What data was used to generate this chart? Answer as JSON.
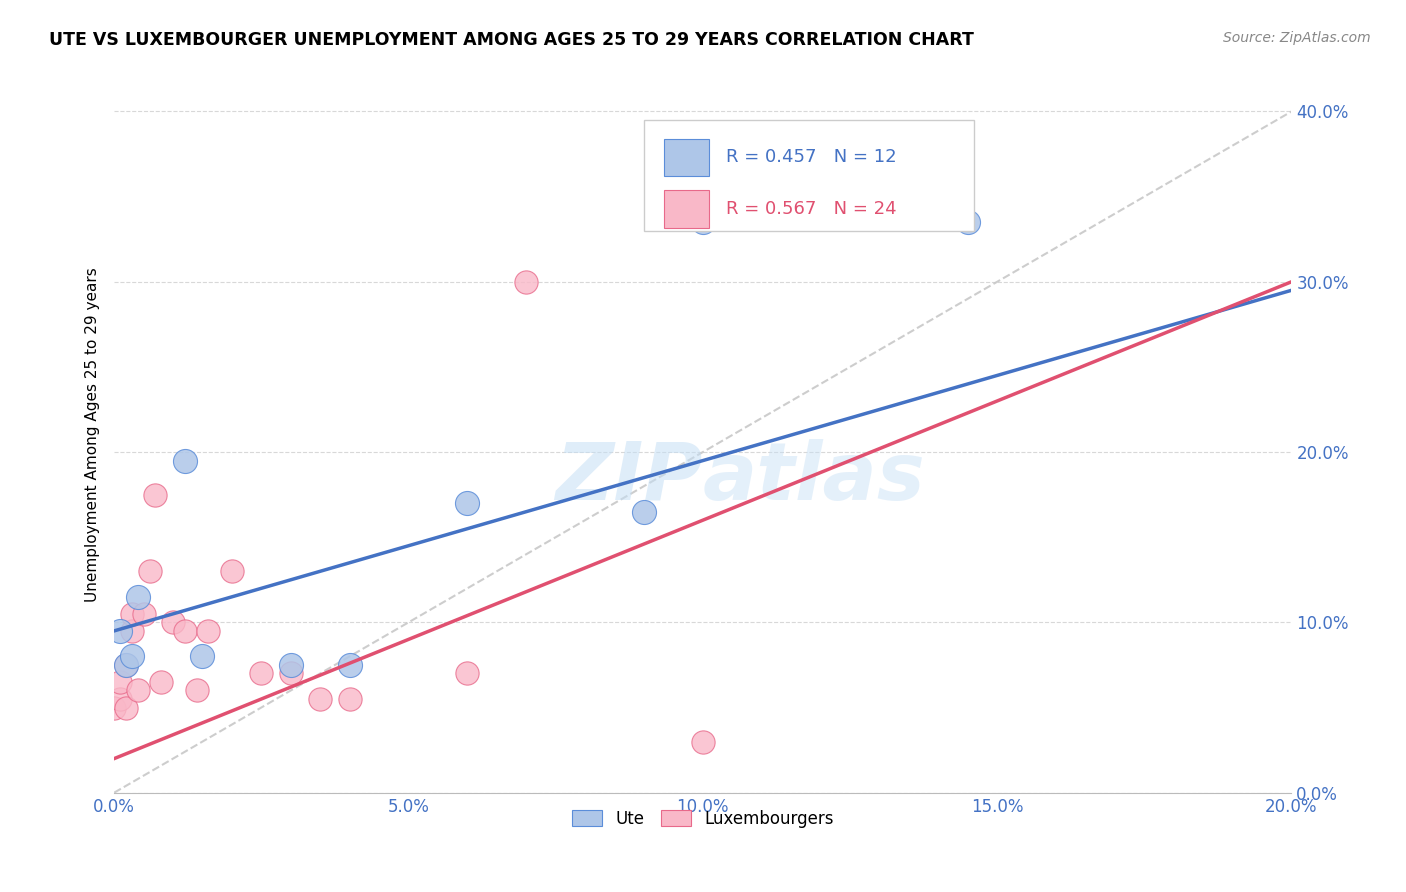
{
  "title": "UTE VS LUXEMBOURGER UNEMPLOYMENT AMONG AGES 25 TO 29 YEARS CORRELATION CHART",
  "source": "Source: ZipAtlas.com",
  "ylabel": "Unemployment Among Ages 25 to 29 years",
  "xlim": [
    0.0,
    0.2
  ],
  "ylim": [
    0.0,
    0.42
  ],
  "xticks": [
    0.0,
    0.05,
    0.1,
    0.15,
    0.2
  ],
  "yticks": [
    0.0,
    0.1,
    0.2,
    0.3,
    0.4
  ],
  "ute_color": "#aec6e8",
  "lux_color": "#f9b8c8",
  "ute_edge_color": "#5b8dd9",
  "lux_edge_color": "#e8698a",
  "ute_line_color": "#4472c4",
  "lux_line_color": "#e05070",
  "diagonal_color": "#c8c8c8",
  "grid_color": "#d8d8d8",
  "ute_R": 0.457,
  "ute_N": 12,
  "lux_R": 0.567,
  "lux_N": 24,
  "ute_points_x": [
    0.001,
    0.002,
    0.003,
    0.004,
    0.012,
    0.015,
    0.03,
    0.04,
    0.06,
    0.09,
    0.1,
    0.145
  ],
  "ute_points_y": [
    0.095,
    0.075,
    0.08,
    0.115,
    0.195,
    0.08,
    0.075,
    0.075,
    0.17,
    0.165,
    0.335,
    0.335
  ],
  "lux_points_x": [
    0.0,
    0.001,
    0.001,
    0.002,
    0.002,
    0.003,
    0.003,
    0.004,
    0.005,
    0.006,
    0.007,
    0.008,
    0.01,
    0.012,
    0.014,
    0.016,
    0.02,
    0.025,
    0.03,
    0.035,
    0.04,
    0.06,
    0.07,
    0.1
  ],
  "lux_points_y": [
    0.05,
    0.055,
    0.065,
    0.05,
    0.075,
    0.095,
    0.105,
    0.06,
    0.105,
    0.13,
    0.175,
    0.065,
    0.1,
    0.095,
    0.06,
    0.095,
    0.13,
    0.07,
    0.07,
    0.055,
    0.055,
    0.07,
    0.3,
    0.03
  ],
  "watermark_line1": "ZIP",
  "watermark_line2": "atlas",
  "legend_R_color": "#4472c4",
  "legend_N_color": "#4472c4",
  "legend_lux_R_color": "#e05070",
  "legend_lux_N_color": "#e05070"
}
